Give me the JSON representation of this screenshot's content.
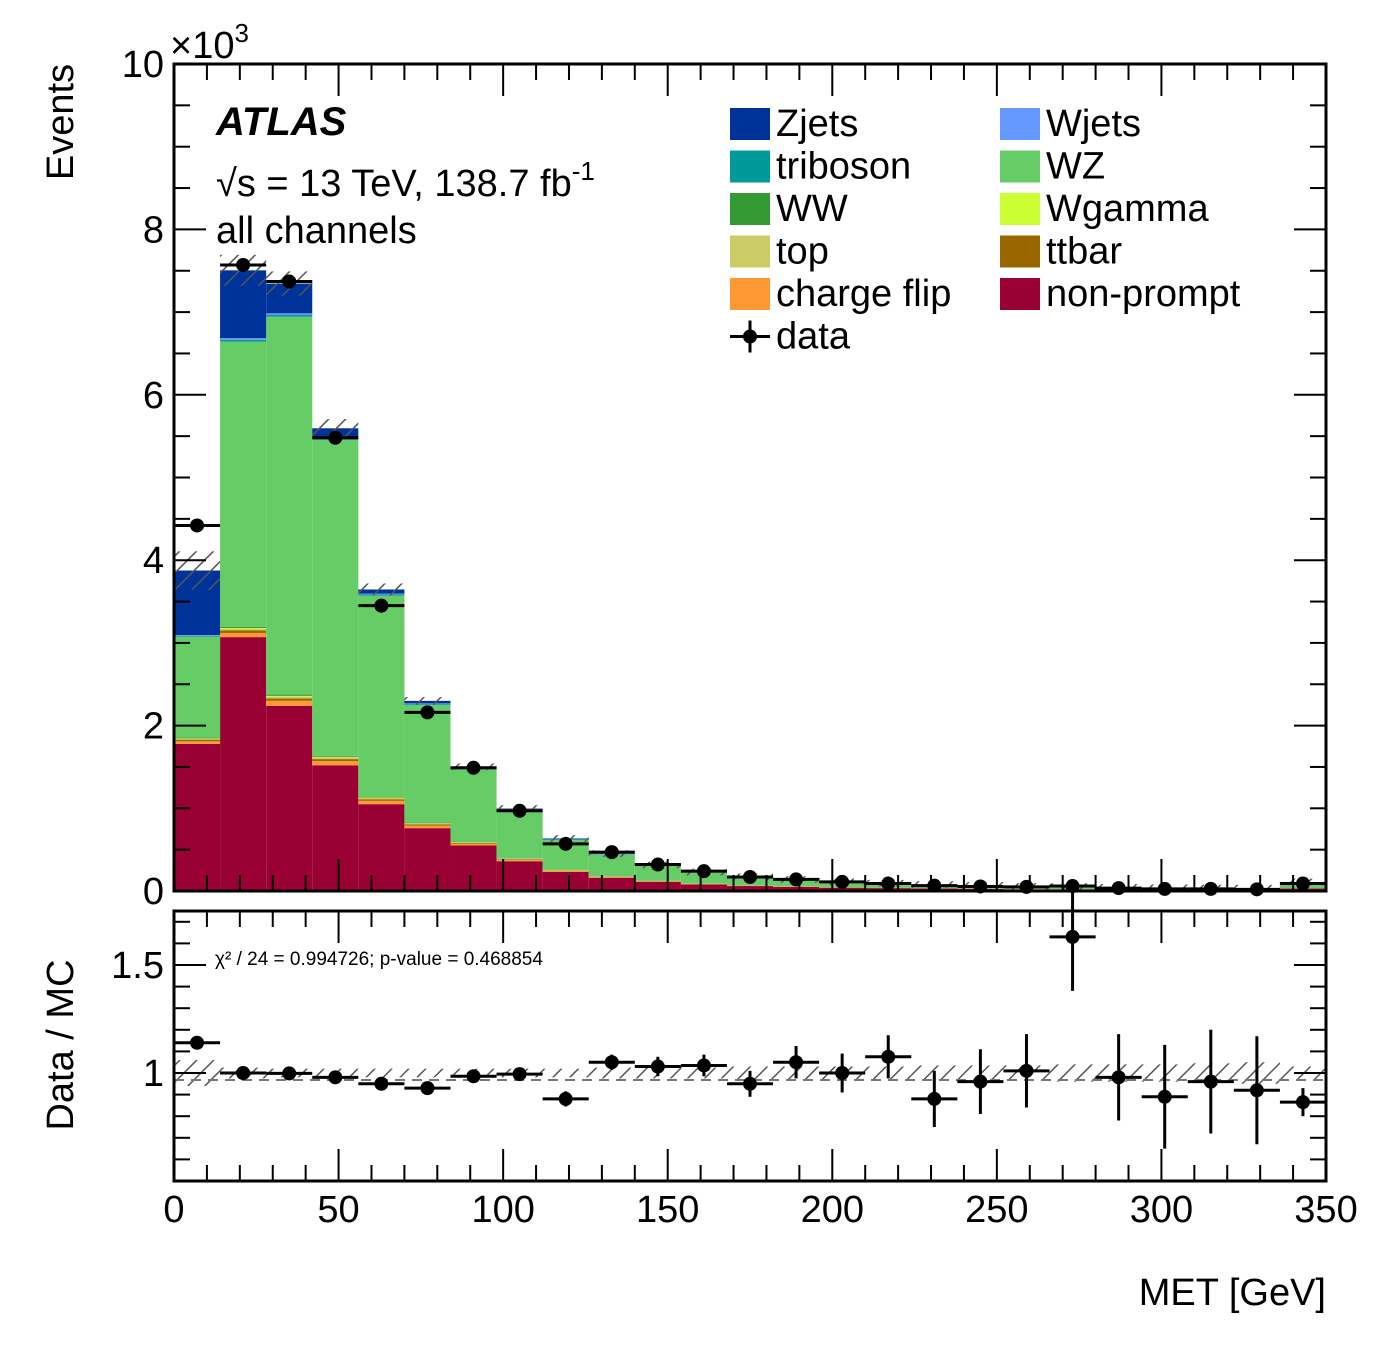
{
  "chart_data": {
    "type": "bar",
    "subtype": "stacked_histogram_with_ratio",
    "experiment": "ATLAS",
    "energy_label": "√s = 13 TeV, 138.7 fb",
    "lumi_exponent": "-1",
    "region_label": "all channels",
    "xlabel": "MET [GeV]",
    "ylabel": "Events",
    "y_multiplier_base": "×10",
    "y_multiplier_exp": "3",
    "xlim": [
      0,
      350
    ],
    "ylim": [
      0,
      10
    ],
    "x_ticks": [
      "0",
      "50",
      "100",
      "150",
      "200",
      "250",
      "300",
      "350"
    ],
    "y_ticks": [
      "0",
      "2",
      "4",
      "6",
      "8",
      "10"
    ],
    "bin_edges": [
      0,
      14,
      28,
      42,
      56,
      70,
      84,
      98,
      112,
      126,
      140,
      154,
      168,
      182,
      196,
      210,
      224,
      238,
      252,
      266,
      280,
      294,
      308,
      322,
      336,
      350
    ],
    "series": [
      {
        "name": "non-prompt",
        "color": "#990033",
        "values": [
          1.78,
          3.07,
          2.24,
          1.52,
          1.05,
          0.76,
          0.55,
          0.36,
          0.23,
          0.16,
          0.11,
          0.08,
          0.06,
          0.05,
          0.04,
          0.035,
          0.03,
          0.025,
          0.02,
          0.02,
          0.015,
          0.015,
          0.012,
          0.012,
          0.03
        ]
      },
      {
        "name": "charge flip",
        "color": "#ff9933",
        "values": [
          0.03,
          0.05,
          0.06,
          0.05,
          0.04,
          0.03,
          0.02,
          0.015,
          0.01,
          0.008,
          0.006,
          0.005,
          0.004,
          0.003,
          0.003,
          0.002,
          0.002,
          0.002,
          0.001,
          0.001,
          0.001,
          0.001,
          0.001,
          0.001,
          0.002
        ]
      },
      {
        "name": "ttbar",
        "color": "#996600",
        "values": [
          0.02,
          0.03,
          0.03,
          0.025,
          0.02,
          0.015,
          0.01,
          0.008,
          0.006,
          0.005,
          0.004,
          0.003,
          0.003,
          0.002,
          0.002,
          0.002,
          0.001,
          0.001,
          0.001,
          0.001,
          0.001,
          0.001,
          0.001,
          0.001,
          0.001
        ]
      },
      {
        "name": "top",
        "color": "#cccc66",
        "values": [
          0.01,
          0.02,
          0.02,
          0.02,
          0.015,
          0.01,
          0.008,
          0.006,
          0.005,
          0.004,
          0.003,
          0.002,
          0.002,
          0.002,
          0.001,
          0.001,
          0.001,
          0.001,
          0.001,
          0.001,
          0.001,
          0.001,
          0.001,
          0.001,
          0.001
        ]
      },
      {
        "name": "Wgamma",
        "color": "#ccff33",
        "values": [
          0.005,
          0.01,
          0.01,
          0.008,
          0.006,
          0.004,
          0.003,
          0.002,
          0.002,
          0.001,
          0.001,
          0.001,
          0.001,
          0.001,
          0.0,
          0.0,
          0.0,
          0.0,
          0.0,
          0.0,
          0.0,
          0.0,
          0.0,
          0.0,
          0.0
        ]
      },
      {
        "name": "WW",
        "color": "#339933",
        "values": [
          0.01,
          0.015,
          0.015,
          0.012,
          0.01,
          0.008,
          0.006,
          0.004,
          0.003,
          0.002,
          0.002,
          0.001,
          0.001,
          0.001,
          0.001,
          0.001,
          0.001,
          0.001,
          0.0,
          0.0,
          0.0,
          0.0,
          0.0,
          0.0,
          0.001
        ]
      },
      {
        "name": "WZ",
        "color": "#66cc66",
        "values": [
          1.22,
          3.45,
          4.57,
          3.82,
          2.43,
          1.42,
          0.87,
          0.58,
          0.36,
          0.26,
          0.18,
          0.13,
          0.095,
          0.075,
          0.06,
          0.05,
          0.04,
          0.035,
          0.03,
          0.028,
          0.025,
          0.02,
          0.02,
          0.018,
          0.07
        ]
      },
      {
        "name": "triboson",
        "color": "#009999",
        "values": [
          0.01,
          0.02,
          0.02,
          0.02,
          0.015,
          0.012,
          0.01,
          0.008,
          0.006,
          0.005,
          0.004,
          0.003,
          0.003,
          0.002,
          0.002,
          0.002,
          0.002,
          0.001,
          0.001,
          0.001,
          0.001,
          0.001,
          0.001,
          0.001,
          0.003
        ]
      },
      {
        "name": "Wjets",
        "color": "#6699ff",
        "values": [
          0.01,
          0.02,
          0.02,
          0.02,
          0.01,
          0.01,
          0.005,
          0.004,
          0.003,
          0.002,
          0.002,
          0.001,
          0.001,
          0.001,
          0.001,
          0.0,
          0.0,
          0.0,
          0.0,
          0.0,
          0.0,
          0.0,
          0.0,
          0.0,
          0.0
        ]
      },
      {
        "name": "Zjets",
        "color": "#003399",
        "values": [
          0.78,
          0.82,
          0.36,
          0.1,
          0.05,
          0.03,
          0.02,
          0.01,
          0.01,
          0.005,
          0.004,
          0.003,
          0.002,
          0.002,
          0.001,
          0.001,
          0.001,
          0.001,
          0.001,
          0.001,
          0.0,
          0.0,
          0.0,
          0.0,
          0.001
        ]
      }
    ],
    "data": {
      "name": "data",
      "color": "#000000",
      "values": [
        4.42,
        7.57,
        7.37,
        5.48,
        3.45,
        2.16,
        1.49,
        0.97,
        0.57,
        0.47,
        0.32,
        0.24,
        0.17,
        0.14,
        0.11,
        0.09,
        0.065,
        0.055,
        0.05,
        0.06,
        0.035,
        0.025,
        0.025,
        0.02,
        0.09
      ]
    },
    "legend": {
      "placement": "top-right",
      "columns": [
        [
          "Zjets",
          "triboson",
          "WW",
          "top",
          "charge flip",
          "data"
        ],
        [
          "Wjets",
          "WZ",
          "Wgamma",
          "ttbar",
          "non-prompt"
        ]
      ]
    },
    "ratio": {
      "ylabel": "Data / MC",
      "ylim": [
        0.5,
        1.75
      ],
      "y_ticks": [
        "1",
        "1.5"
      ],
      "annotation": "χ² / 24 = 0.994726; p-value = 0.468854",
      "values": [
        1.14,
        1.0,
        0.998,
        0.98,
        0.95,
        0.93,
        0.985,
        0.995,
        0.88,
        1.05,
        1.03,
        1.035,
        0.95,
        1.05,
        1.0,
        1.075,
        0.88,
        0.96,
        1.01,
        1.63,
        0.98,
        0.89,
        0.96,
        0.92,
        0.865
      ],
      "errors": [
        0.012,
        0.01,
        0.01,
        0.012,
        0.015,
        0.018,
        0.02,
        0.025,
        0.035,
        0.035,
        0.045,
        0.05,
        0.06,
        0.075,
        0.09,
        0.1,
        0.13,
        0.15,
        0.17,
        0.25,
        0.2,
        0.24,
        0.24,
        0.25,
        0.065
      ],
      "mc_uncertainty": [
        0.06,
        0.025,
        0.02,
        0.02,
        0.02,
        0.02,
        0.02,
        0.02,
        0.02,
        0.025,
        0.025,
        0.025,
        0.03,
        0.03,
        0.03,
        0.03,
        0.035,
        0.035,
        0.035,
        0.04,
        0.04,
        0.04,
        0.045,
        0.05,
        0.03
      ]
    }
  }
}
